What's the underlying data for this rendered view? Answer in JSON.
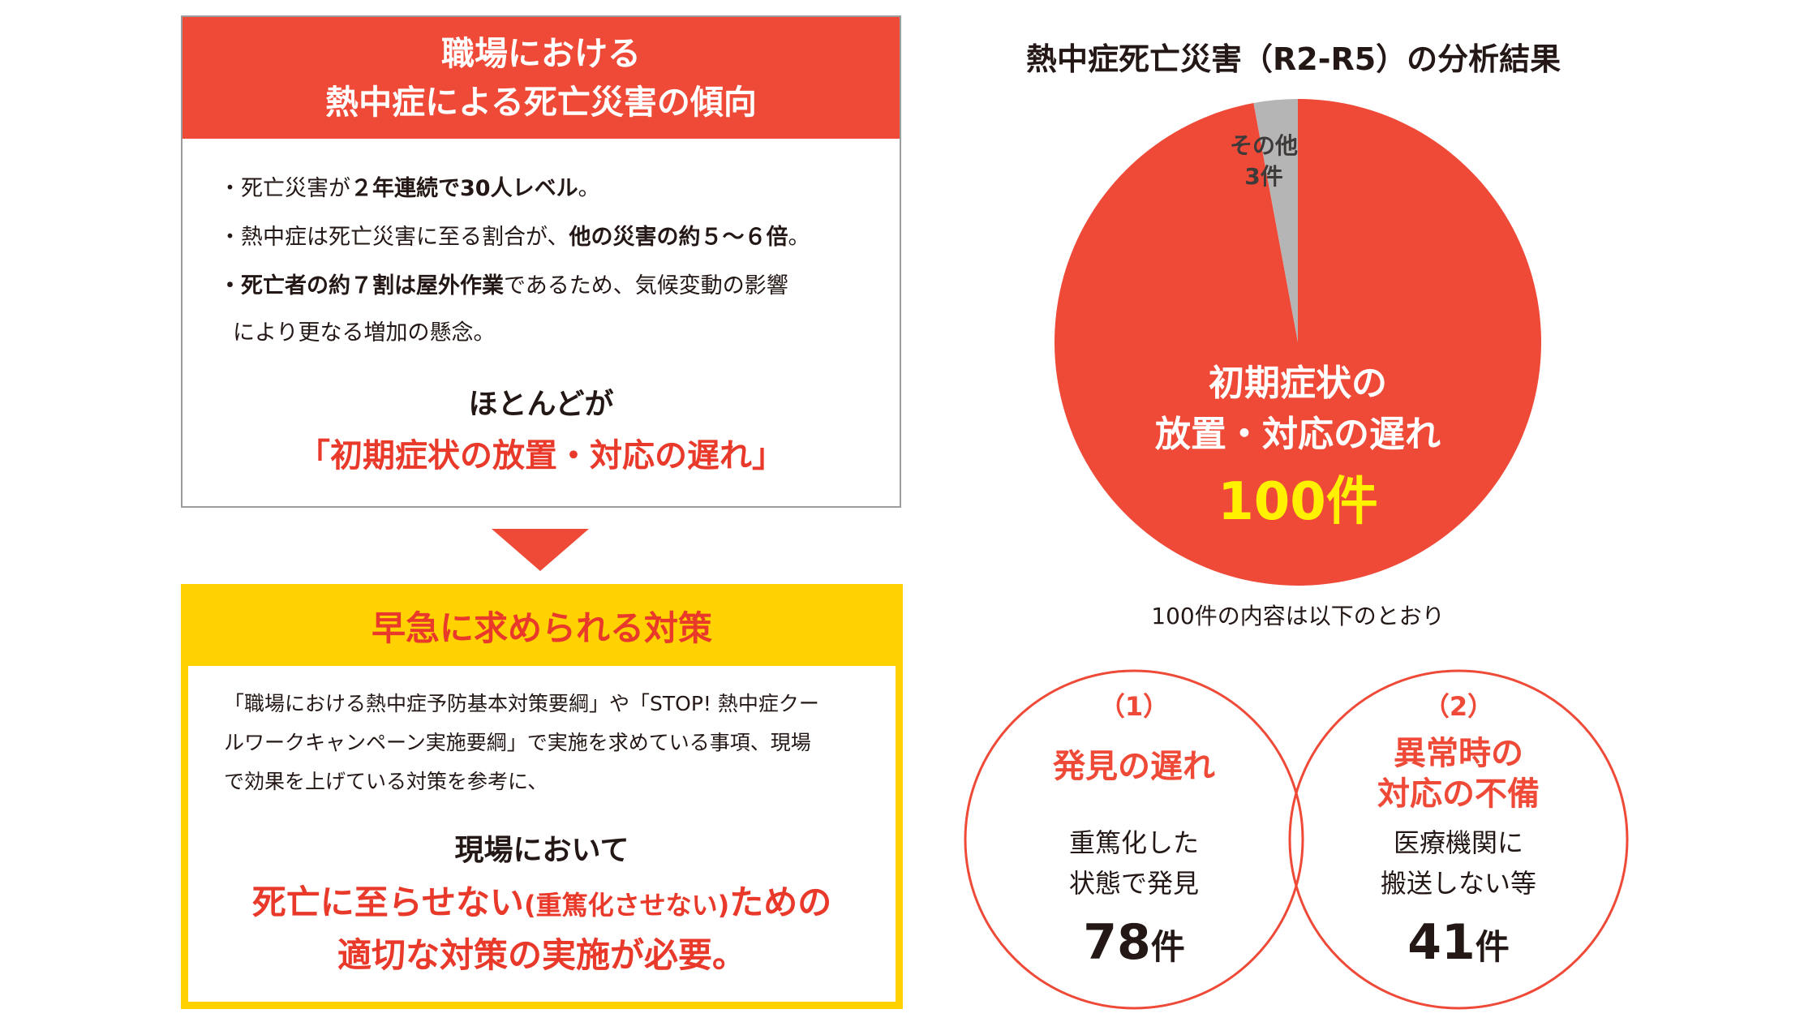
{
  "trend": {
    "title_line1": "職場における",
    "title_line2": "熱中症による死亡災害の傾向",
    "bullets": [
      {
        "plain_a": "・死亡災害が",
        "bold_a": "２年連続で30人レベル",
        "plain_b": "。",
        "bold_b": "",
        "plain_c": ""
      },
      {
        "plain_a": "・熱中症は死亡災害に至る割合が、",
        "bold_a": "他の災害の約５～６倍",
        "plain_b": "。",
        "bold_b": "",
        "plain_c": ""
      },
      {
        "plain_a": "・",
        "bold_a": "死亡者の約７割",
        "plain_b": "は",
        "bold_b": "屋外作業",
        "plain_c": "であるため、気候変動の影響"
      }
    ],
    "bullet3_cont": "により更なる増加の懸念。",
    "conclusion_lead": "ほとんどが",
    "conclusion_main": "「初期症状の放置・対応の遅れ」"
  },
  "measures": {
    "title": "早急に求められる対策",
    "body_lines": [
      "「職場における熱中症予防基本対策要綱」や「STOP! 熱中症クー",
      "ルワークキャンペーン実施要綱」で実施を求めている事項、現場",
      "で効果を上げている対策を参考に、"
    ],
    "lead": "現場において",
    "main_line1_a": "死亡に至らせない",
    "main_line1_b": "(重篤化させない)",
    "main_line1_c": "ための",
    "main_line2": "適切な対策の実施が必要。"
  },
  "chart_data": {
    "type": "pie",
    "title": "熱中症死亡災害（R2-R5）の分析結果",
    "slices": [
      {
        "label_line1": "初期症状の",
        "label_line2": "放置・対応の遅れ",
        "value": 100,
        "value_label": "100件",
        "color": "#ef4a38"
      },
      {
        "label_line1": "その他",
        "label_line2": "",
        "value": 3,
        "value_label": "3件",
        "color": "#b5b5b6"
      }
    ]
  },
  "pie_note": "100件の内容は以下のとおり",
  "breakdown": [
    {
      "number": "（1）",
      "title_line1": "発見の遅れ",
      "title_line2": "",
      "desc_line1": "重篤化した",
      "desc_line2": "状態で発見",
      "count": "78",
      "unit": "件"
    },
    {
      "number": "（2）",
      "title_line1": "異常時の",
      "title_line2": "対応の不備",
      "desc_line1": "医療機関に",
      "desc_line2": "搬送しない等",
      "count": "41",
      "unit": "件"
    }
  ],
  "colors": {
    "accent_red": "#ef4a38",
    "text_red": "#e8392b",
    "yellow": "#ffd200",
    "value_yellow": "#fff100",
    "gray": "#b5b5b6"
  }
}
